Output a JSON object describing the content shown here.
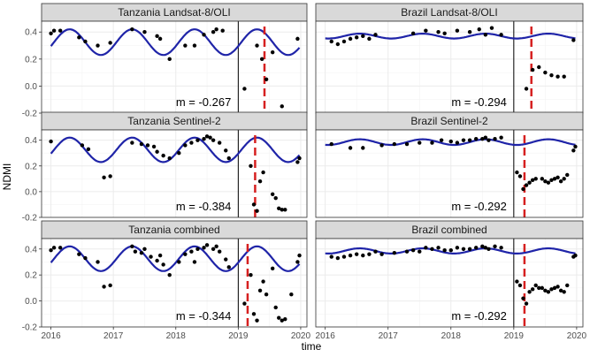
{
  "chart_data": {
    "type": "scatter",
    "ylabel": "NDMI",
    "xlabel": "time",
    "xlim": [
      2015.85,
      2020.1
    ],
    "ylim": [
      -0.2,
      0.48
    ],
    "x_ticks": [
      2016,
      2017,
      2018,
      2019,
      2020
    ],
    "x_tick_labels": [
      "2016",
      "2017",
      "2018",
      "2019",
      "2020"
    ],
    "y_ticks": [
      -0.2,
      0.0,
      0.2,
      0.4
    ],
    "y_tick_labels": [
      "-0.2",
      "0.0",
      "0.2",
      "0.4"
    ],
    "grid": true,
    "colors": {
      "points": "#000000",
      "fit_line": "#1f24a8",
      "break_line": "#000000",
      "detection_line": "#d62020",
      "strip_fill": "#d9d9d9",
      "panel_border": "#333333",
      "grid": "#ebebeb"
    },
    "panels": [
      {
        "strip": "Tanzania Landsat-8/OLI",
        "m_label": "m = -0.267",
        "fit": {
          "mean": 0.325,
          "amplitude": 0.095,
          "period": 1.0,
          "phase": 2016.05
        },
        "break_x": 2019.0,
        "detection_x": 2019.42,
        "points": [
          [
            2016.0,
            0.39
          ],
          [
            2016.05,
            0.41
          ],
          [
            2016.15,
            0.41
          ],
          [
            2016.45,
            0.36
          ],
          [
            2016.55,
            0.33
          ],
          [
            2016.75,
            0.3
          ],
          [
            2016.95,
            0.32
          ],
          [
            2017.3,
            0.42
          ],
          [
            2017.5,
            0.4
          ],
          [
            2017.7,
            0.37
          ],
          [
            2017.75,
            0.35
          ],
          [
            2017.9,
            0.2
          ],
          [
            2018.15,
            0.3
          ],
          [
            2018.3,
            0.3
          ],
          [
            2018.45,
            0.38
          ],
          [
            2018.6,
            0.4
          ],
          [
            2018.65,
            0.42
          ],
          [
            2018.75,
            0.41
          ],
          [
            2019.1,
            -0.02
          ],
          [
            2019.3,
            0.3
          ],
          [
            2019.38,
            0.2
          ],
          [
            2019.45,
            0.05
          ],
          [
            2019.55,
            0.25
          ],
          [
            2019.7,
            -0.15
          ],
          [
            2019.95,
            0.35
          ]
        ]
      },
      {
        "strip": "Brazil Landsat-8/OLI",
        "m_label": "m = -0.294",
        "fit": {
          "mean": 0.37,
          "amplitude": 0.018,
          "period": 1.0,
          "phase": 2016.3
        },
        "break_x": 2019.0,
        "detection_x": 2019.28,
        "points": [
          [
            2016.1,
            0.33
          ],
          [
            2016.2,
            0.31
          ],
          [
            2016.3,
            0.33
          ],
          [
            2016.4,
            0.35
          ],
          [
            2016.5,
            0.36
          ],
          [
            2016.6,
            0.37
          ],
          [
            2016.7,
            0.35
          ],
          [
            2016.8,
            0.38
          ],
          [
            2017.4,
            0.39
          ],
          [
            2017.6,
            0.41
          ],
          [
            2017.8,
            0.4
          ],
          [
            2017.9,
            0.39
          ],
          [
            2018.1,
            0.41
          ],
          [
            2018.3,
            0.4
          ],
          [
            2018.45,
            0.42
          ],
          [
            2018.55,
            0.38
          ],
          [
            2018.65,
            0.43
          ],
          [
            2018.8,
            0.38
          ],
          [
            2019.2,
            -0.02
          ],
          [
            2019.3,
            0.12
          ],
          [
            2019.4,
            0.14
          ],
          [
            2019.5,
            0.1
          ],
          [
            2019.6,
            0.08
          ],
          [
            2019.7,
            0.07
          ],
          [
            2019.8,
            0.07
          ],
          [
            2019.95,
            0.34
          ]
        ]
      },
      {
        "strip": "Tanzania Sentinel-2",
        "m_label": "m = -0.384",
        "fit": {
          "mean": 0.325,
          "amplitude": 0.095,
          "period": 1.0,
          "phase": 2016.05
        },
        "break_x": 2019.0,
        "detection_x": 2019.27,
        "points": [
          [
            2016.0,
            0.39
          ],
          [
            2016.5,
            0.36
          ],
          [
            2016.6,
            0.33
          ],
          [
            2016.85,
            0.11
          ],
          [
            2016.95,
            0.12
          ],
          [
            2017.3,
            0.38
          ],
          [
            2017.45,
            0.37
          ],
          [
            2017.55,
            0.36
          ],
          [
            2017.65,
            0.35
          ],
          [
            2017.7,
            0.31
          ],
          [
            2017.8,
            0.28
          ],
          [
            2017.9,
            0.26
          ],
          [
            2018.05,
            0.3
          ],
          [
            2018.15,
            0.36
          ],
          [
            2018.25,
            0.38
          ],
          [
            2018.35,
            0.4
          ],
          [
            2018.45,
            0.41
          ],
          [
            2018.5,
            0.43
          ],
          [
            2018.55,
            0.42
          ],
          [
            2018.6,
            0.4
          ],
          [
            2018.7,
            0.38
          ],
          [
            2018.8,
            0.32
          ],
          [
            2018.85,
            0.26
          ],
          [
            2019.2,
            0.2
          ],
          [
            2019.25,
            -0.1
          ],
          [
            2019.3,
            -0.15
          ],
          [
            2019.35,
            0.08
          ],
          [
            2019.4,
            0.15
          ],
          [
            2019.55,
            -0.02
          ],
          [
            2019.6,
            -0.05
          ],
          [
            2019.65,
            -0.13
          ],
          [
            2019.7,
            -0.14
          ],
          [
            2019.75,
            -0.14
          ],
          [
            2019.95,
            0.23
          ],
          [
            2019.98,
            0.26
          ]
        ]
      },
      {
        "strip": "Brazil Sentinel-2",
        "m_label": "m = -0.292",
        "fit": {
          "mean": 0.385,
          "amplitude": 0.022,
          "period": 1.0,
          "phase": 2016.3
        },
        "break_x": 2019.0,
        "detection_x": 2019.17,
        "points": [
          [
            2016.1,
            0.37
          ],
          [
            2016.4,
            0.34
          ],
          [
            2016.6,
            0.34
          ],
          [
            2016.9,
            0.36
          ],
          [
            2017.1,
            0.37
          ],
          [
            2017.3,
            0.37
          ],
          [
            2017.5,
            0.38
          ],
          [
            2017.7,
            0.38
          ],
          [
            2017.85,
            0.4
          ],
          [
            2018.0,
            0.39
          ],
          [
            2018.1,
            0.38
          ],
          [
            2018.2,
            0.4
          ],
          [
            2018.3,
            0.4
          ],
          [
            2018.4,
            0.41
          ],
          [
            2018.5,
            0.41
          ],
          [
            2018.55,
            0.42
          ],
          [
            2018.6,
            0.4
          ],
          [
            2018.7,
            0.41
          ],
          [
            2018.8,
            0.42
          ],
          [
            2019.05,
            0.15
          ],
          [
            2019.1,
            0.12
          ],
          [
            2019.15,
            0.02
          ],
          [
            2019.2,
            0.05
          ],
          [
            2019.25,
            0.07
          ],
          [
            2019.3,
            0.09
          ],
          [
            2019.35,
            0.1
          ],
          [
            2019.45,
            0.1
          ],
          [
            2019.5,
            0.08
          ],
          [
            2019.55,
            0.07
          ],
          [
            2019.6,
            0.09
          ],
          [
            2019.65,
            0.1
          ],
          [
            2019.7,
            0.11
          ],
          [
            2019.75,
            0.08
          ],
          [
            2019.8,
            0.1
          ],
          [
            2019.85,
            0.13
          ],
          [
            2019.95,
            0.32
          ],
          [
            2019.98,
            0.35
          ]
        ]
      },
      {
        "strip": "Tanzania combined",
        "m_label": "m = -0.344",
        "fit": {
          "mean": 0.325,
          "amplitude": 0.095,
          "period": 1.0,
          "phase": 2016.05
        },
        "break_x": 2019.0,
        "detection_x": 2019.15,
        "points": [
          [
            2016.0,
            0.39
          ],
          [
            2016.05,
            0.41
          ],
          [
            2016.15,
            0.41
          ],
          [
            2016.45,
            0.36
          ],
          [
            2016.55,
            0.33
          ],
          [
            2016.75,
            0.3
          ],
          [
            2016.85,
            0.11
          ],
          [
            2016.95,
            0.12
          ],
          [
            2017.3,
            0.42
          ],
          [
            2017.35,
            0.38
          ],
          [
            2017.45,
            0.37
          ],
          [
            2017.5,
            0.4
          ],
          [
            2017.6,
            0.34
          ],
          [
            2017.7,
            0.31
          ],
          [
            2017.75,
            0.35
          ],
          [
            2017.8,
            0.28
          ],
          [
            2017.9,
            0.2
          ],
          [
            2018.05,
            0.3
          ],
          [
            2018.15,
            0.36
          ],
          [
            2018.25,
            0.38
          ],
          [
            2018.3,
            0.3
          ],
          [
            2018.35,
            0.4
          ],
          [
            2018.45,
            0.41
          ],
          [
            2018.5,
            0.43
          ],
          [
            2018.6,
            0.4
          ],
          [
            2018.65,
            0.42
          ],
          [
            2018.7,
            0.38
          ],
          [
            2018.8,
            0.32
          ],
          [
            2018.85,
            0.26
          ],
          [
            2019.1,
            -0.02
          ],
          [
            2019.2,
            0.2
          ],
          [
            2019.25,
            -0.1
          ],
          [
            2019.3,
            -0.15
          ],
          [
            2019.35,
            0.08
          ],
          [
            2019.4,
            0.15
          ],
          [
            2019.45,
            0.05
          ],
          [
            2019.55,
            0.25
          ],
          [
            2019.6,
            -0.05
          ],
          [
            2019.65,
            -0.13
          ],
          [
            2019.7,
            -0.15
          ],
          [
            2019.75,
            -0.14
          ],
          [
            2019.85,
            0.05
          ],
          [
            2019.95,
            0.3
          ],
          [
            2019.98,
            0.35
          ]
        ]
      },
      {
        "strip": "Brazil combined",
        "m_label": "m = -0.292",
        "fit": {
          "mean": 0.385,
          "amplitude": 0.02,
          "period": 1.0,
          "phase": 2016.3
        },
        "break_x": 2019.0,
        "detection_x": 2019.17,
        "points": [
          [
            2016.1,
            0.34
          ],
          [
            2016.2,
            0.33
          ],
          [
            2016.3,
            0.34
          ],
          [
            2016.4,
            0.35
          ],
          [
            2016.5,
            0.36
          ],
          [
            2016.6,
            0.35
          ],
          [
            2016.7,
            0.36
          ],
          [
            2016.8,
            0.38
          ],
          [
            2016.9,
            0.36
          ],
          [
            2017.1,
            0.37
          ],
          [
            2017.3,
            0.38
          ],
          [
            2017.4,
            0.39
          ],
          [
            2017.5,
            0.38
          ],
          [
            2017.6,
            0.41
          ],
          [
            2017.7,
            0.4
          ],
          [
            2017.8,
            0.41
          ],
          [
            2017.9,
            0.39
          ],
          [
            2018.0,
            0.39
          ],
          [
            2018.1,
            0.41
          ],
          [
            2018.2,
            0.4
          ],
          [
            2018.3,
            0.4
          ],
          [
            2018.4,
            0.41
          ],
          [
            2018.5,
            0.42
          ],
          [
            2018.55,
            0.41
          ],
          [
            2018.6,
            0.4
          ],
          [
            2018.7,
            0.42
          ],
          [
            2018.8,
            0.41
          ],
          [
            2019.05,
            0.15
          ],
          [
            2019.1,
            0.12
          ],
          [
            2019.15,
            0.02
          ],
          [
            2019.2,
            -0.02
          ],
          [
            2019.25,
            0.07
          ],
          [
            2019.3,
            0.09
          ],
          [
            2019.35,
            0.12
          ],
          [
            2019.4,
            0.1
          ],
          [
            2019.45,
            0.1
          ],
          [
            2019.5,
            0.08
          ],
          [
            2019.55,
            0.07
          ],
          [
            2019.6,
            0.09
          ],
          [
            2019.65,
            0.1
          ],
          [
            2019.7,
            0.11
          ],
          [
            2019.75,
            0.08
          ],
          [
            2019.8,
            0.07
          ],
          [
            2019.85,
            0.12
          ],
          [
            2019.95,
            0.34
          ],
          [
            2019.98,
            0.35
          ]
        ]
      }
    ]
  }
}
